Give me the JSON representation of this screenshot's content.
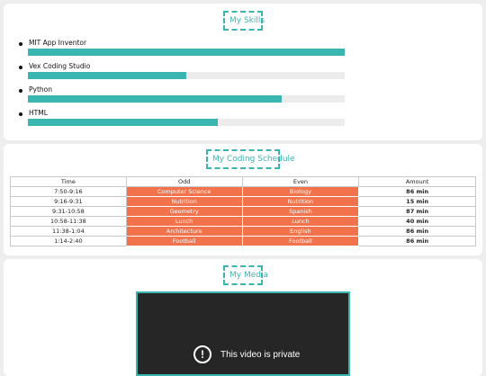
{
  "skills": {
    "title": "My Skills",
    "items": [
      {
        "label": "MIT App Inventor",
        "level": 1.0
      },
      {
        "label": "Vex Coding Studio",
        "level": 0.5
      },
      {
        "label": "Python",
        "level": 0.8
      },
      {
        "label": "HTML",
        "level": 0.6
      }
    ]
  },
  "schedule": {
    "title": "My Coding Schedule",
    "headers": [
      "Time",
      "Odd",
      "Even",
      "Amount"
    ],
    "rows": [
      [
        "7:50-9:16",
        "Computer Science",
        "Biology",
        "86 min"
      ],
      [
        "9:16-9:31",
        "Nutrition",
        "Nutrition",
        "15 min"
      ],
      [
        "9:31-10:58",
        "Geometry",
        "Spanish",
        "87 min"
      ],
      [
        "10:58-11:38",
        "Lunch",
        "Lunch",
        "40 min"
      ],
      [
        "11:38-1:04",
        "Architecture",
        "English",
        "86 min"
      ],
      [
        "1:14-2:40",
        "Football",
        "Football",
        "86 min"
      ]
    ]
  },
  "media": {
    "title": "My Media",
    "video_message": "This video is private",
    "icon": "alert-circle-icon"
  },
  "colors": {
    "accent": "#3ab5b0",
    "highlight": "#f2734b",
    "video_bg": "#262626"
  }
}
